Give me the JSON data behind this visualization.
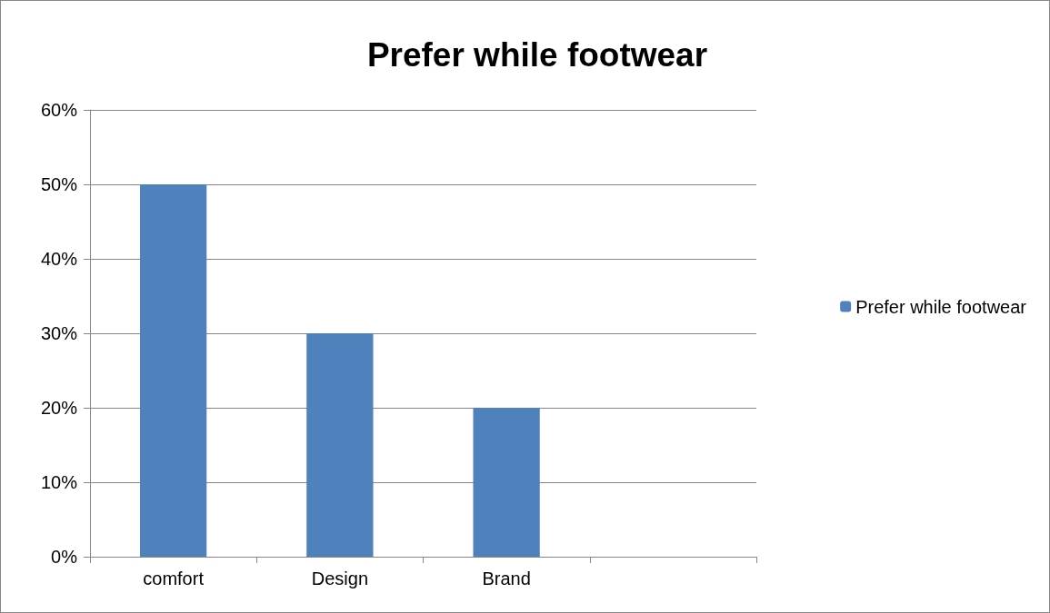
{
  "chart_data": {
    "type": "bar",
    "title": "Prefer while footwear",
    "categories": [
      "comfort",
      "Design",
      "Brand",
      null
    ],
    "series": [
      {
        "name": "Prefer while footwear",
        "color": "#4f81bd",
        "values": [
          50,
          30,
          20,
          null
        ]
      }
    ],
    "ylim": [
      0,
      60
    ],
    "yticks": [
      {
        "value": 0,
        "label": "0%"
      },
      {
        "value": 10,
        "label": "10%"
      },
      {
        "value": 20,
        "label": "20%"
      },
      {
        "value": 30,
        "label": "30%"
      },
      {
        "value": 40,
        "label": "40%"
      },
      {
        "value": 50,
        "label": "50%"
      },
      {
        "value": 60,
        "label": "60%"
      }
    ],
    "grid": "y",
    "legend": "right"
  }
}
